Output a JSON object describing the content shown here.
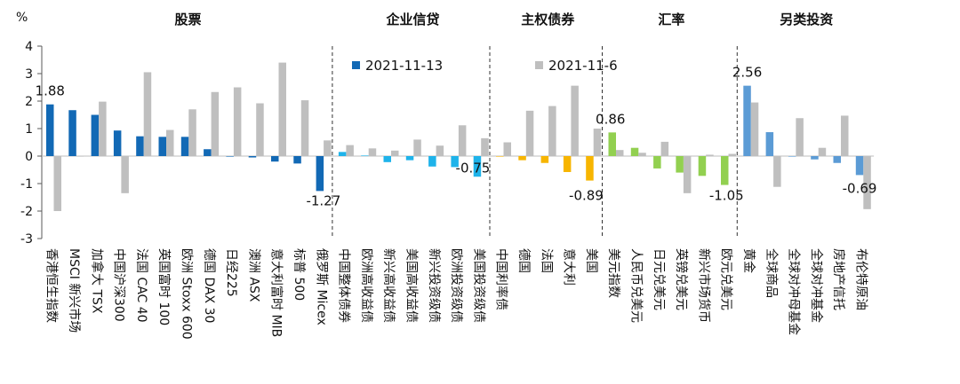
{
  "chart_data": {
    "type": "bar",
    "y_unit_label": "%",
    "ylim": [
      -3,
      4
    ],
    "yticks": [
      -3,
      -2,
      -1,
      0,
      1,
      2,
      3,
      4
    ],
    "grid": false,
    "legend_position": "top-center",
    "series": [
      {
        "name": "2021-11-13",
        "values": [
          1.88,
          1.67,
          1.5,
          0.93,
          0.72,
          0.7,
          0.7,
          0.25,
          0.0,
          -0.05,
          -0.2,
          -0.27,
          -1.27,
          0.15,
          0.02,
          -0.22,
          -0.15,
          -0.38,
          -0.4,
          -0.75,
          0.0,
          -0.15,
          -0.25,
          -0.58,
          -0.89,
          0.86,
          0.3,
          -0.45,
          -0.6,
          -0.72,
          -1.05,
          2.56,
          0.87,
          0.0,
          -0.12,
          -0.25,
          -0.69
        ]
      },
      {
        "name": "2021-11-6",
        "values": [
          -2.0,
          0.0,
          1.98,
          -1.35,
          3.05,
          0.95,
          1.7,
          2.33,
          2.5,
          1.92,
          3.4,
          2.03,
          0.57,
          0.4,
          0.28,
          0.2,
          0.6,
          0.38,
          1.12,
          0.65,
          0.5,
          1.65,
          1.82,
          2.56,
          1.0,
          0.22,
          0.12,
          0.52,
          -1.35,
          0.05,
          0.08,
          1.95,
          -1.12,
          1.38,
          0.3,
          1.47,
          -1.93
        ]
      }
    ],
    "categories": [
      "香港恒生指数",
      "MSCI 新兴市场",
      "加拿大 TSX",
      "中国沪深300",
      "法国 CAC 40",
      "英国富时 100",
      "欧洲 Stoxx 600",
      "德国 DAX 30",
      "日经225",
      "澳洲 ASX",
      "意大利富时 MIB",
      "标普 500",
      "俄罗斯 Micex",
      "中国整体债券",
      "欧洲高收益债",
      "新兴高收益债",
      "美国高收益债",
      "新兴投资级债",
      "欧洲投资级债",
      "美国投资级债",
      "中国利率债",
      "德国",
      "法国",
      "意大利",
      "美国",
      "美元指数",
      "人民币兑美元",
      "日元兑美元",
      "英镑兑美元",
      "新兴市场货币",
      "欧元兑美元",
      "黄金",
      "全球商品",
      "全球对冲母基金",
      "全球对冲基金",
      "房地产信托",
      "布伦特原油"
    ],
    "groups": [
      {
        "label": "股票",
        "count": 13,
        "color_current": "#1269B5"
      },
      {
        "label": "企业信贷",
        "count": 7,
        "color_current": "#1EB3EA"
      },
      {
        "label": "主权债券",
        "count": 5,
        "color_current": "#F7B500"
      },
      {
        "label": "汇率",
        "count": 6,
        "color_current": "#92D050"
      },
      {
        "label": "另类投资",
        "count": 6,
        "color_current": "#5B9BD5"
      }
    ],
    "color_previous": "#BFBFBF",
    "data_labels": [
      {
        "text": "1.88"
      },
      {
        "text": "-1.27"
      },
      {
        "text": "-0.75"
      },
      {
        "text": "0.86"
      },
      {
        "text": "-0.89"
      },
      {
        "text": "-1.05"
      },
      {
        "text": "2.56"
      },
      {
        "text": "-0.69"
      }
    ]
  }
}
